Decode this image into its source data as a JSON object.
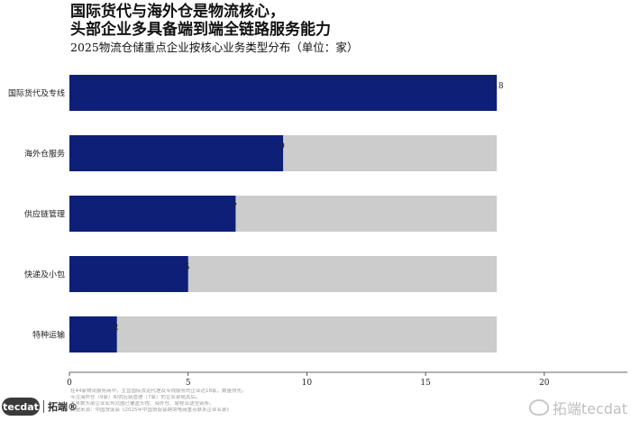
{
  "header": {
    "title": "国际货代与海外仓是物流核心，\n头部企业多具备端到端全链路服务能力",
    "subtitle": "2025物流仓储重点企业按核心业务类型分布（单位：家）"
  },
  "footnote": {
    "lines": [
      "在44家物流服务商中，主营国际货运代理及专线服务的企业达18家，数量领先。",
      "专注海外仓（9家）和供应链管理（7家）的企业紧随其后。",
      "大多数头部企业业务范围已覆盖头程、海外仓、尾程派送全链条。",
      "数据来源：中国贸促会《2025年中国贸促会跨境电商重点联系企业名录》"
    ]
  },
  "branding": {
    "logo_en": "tecdat",
    "logo_cn": "拓端®",
    "watermark": "拓端tecdat"
  },
  "colors": {
    "bar": "#0e1f78",
    "track": "#cccccc",
    "axis": "#333333"
  },
  "chart_data": {
    "type": "bar",
    "orientation": "horizontal",
    "title": "国际货代与海外仓是物流核心，头部企业多具备端到端全链路服务能力",
    "subtitle": "2025物流仓储重点企业按核心业务类型分布（单位：家）",
    "categories": [
      "国际货代及专线",
      "海外仓服务",
      "供应链管理",
      "快递及小包",
      "特种运输"
    ],
    "values": [
      18,
      9,
      7,
      5,
      2
    ],
    "track_max": 18,
    "xlim": [
      0,
      23.5
    ],
    "xticks": [
      0,
      5,
      10,
      15,
      20
    ],
    "xlabel": "",
    "ylabel": "",
    "grid": false,
    "legend": "none"
  }
}
